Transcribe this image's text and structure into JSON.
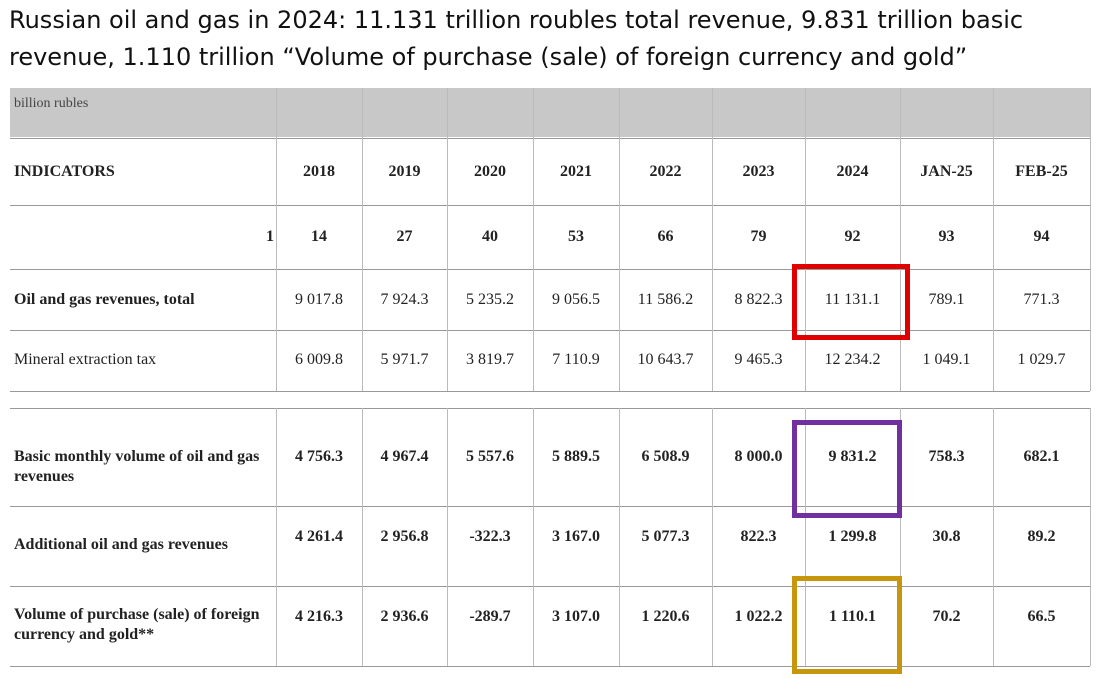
{
  "headline": "Russian oil and gas in 2024: 11.131 trillion roubles total revenue, 9.831 trillion basic\nrevenue, 1.110 trillion “Volume of purchase (sale) of foreign currency and gold”",
  "table": {
    "unit": "billion rubles",
    "header_label": "INDICATORS",
    "columns": [
      "2018",
      "2019",
      "2020",
      "2021",
      "2022",
      "2023",
      "2024",
      "JAN-25",
      "FEB-25"
    ],
    "index_row": {
      "label": "1",
      "values": [
        "14",
        "27",
        "40",
        "53",
        "66",
        "79",
        "92",
        "93",
        "94"
      ]
    },
    "rows": [
      {
        "label": "Oil and gas revenues, total",
        "values": [
          "9 017.8",
          "7 924.3",
          "5 235.2",
          "9 056.5",
          "11 586.2",
          "8 822.3",
          "11 131.1",
          "789.1",
          "771.3"
        ]
      },
      {
        "label": "Mineral extraction tax",
        "values": [
          "6 009.8",
          "5 971.7",
          "3 819.7",
          "7 110.9",
          "10 643.7",
          "9 465.3",
          "12 234.2",
          "1 049.1",
          "1 029.7"
        ]
      },
      {
        "label": "Basic monthly volume of oil and gas revenues",
        "values": [
          "4 756.3",
          "4 967.4",
          "5 557.6",
          "5 889.5",
          "6 508.9",
          "8 000.0",
          "9 831.2",
          "758.3",
          "682.1"
        ]
      },
      {
        "label": "Additional oil and gas revenues",
        "values": [
          "4 261.4",
          "2 956.8",
          "-322.3",
          "3 167.0",
          "5 077.3",
          "822.3",
          "1 299.8",
          "30.8",
          "89.2"
        ]
      },
      {
        "label": "Volume of purchase (sale) of foreign currency and gold**",
        "values": [
          "4 216.3",
          "2 936.6",
          "-289.7",
          "3 107.0",
          "1 220.6",
          "1 022.2",
          "1 110.1",
          "70.2",
          "66.5"
        ]
      }
    ]
  },
  "highlights": {
    "red": "#e00000",
    "purple": "#7030a0",
    "gold": "#c8960c"
  }
}
